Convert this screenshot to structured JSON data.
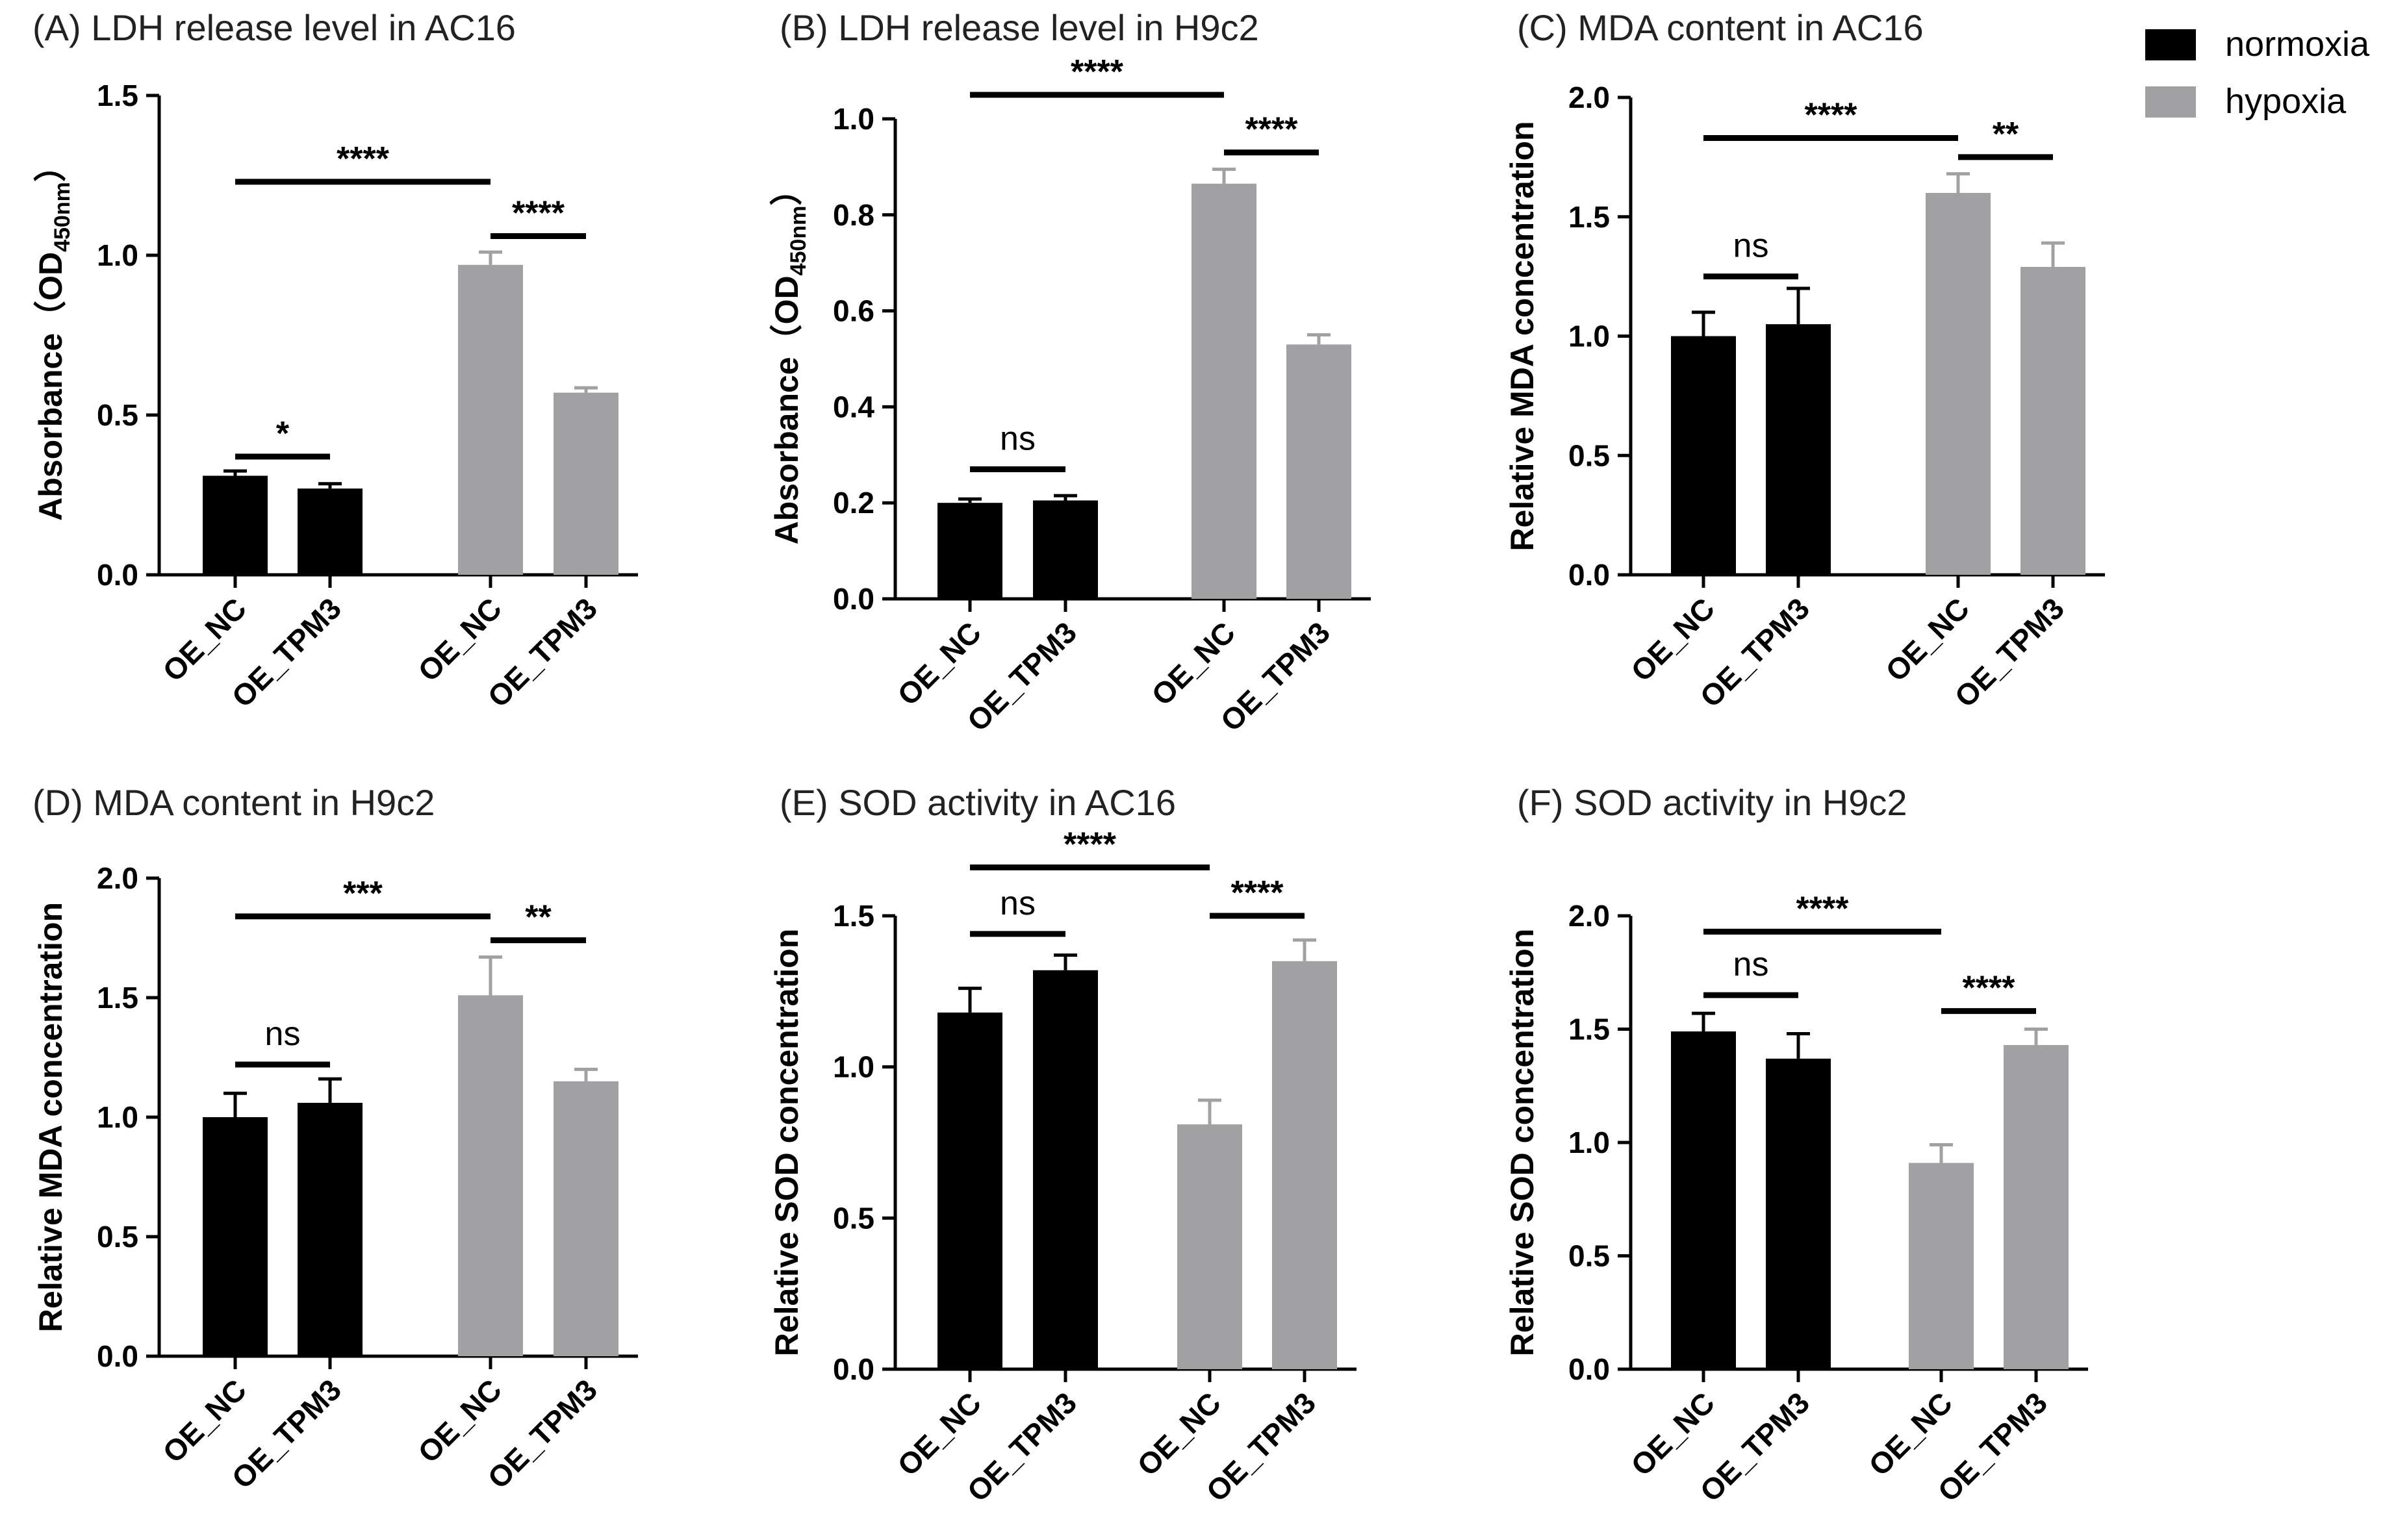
{
  "legend": [
    {
      "name": "normoxia",
      "color": "#000000"
    },
    {
      "name": "hypoxia",
      "color": "#a1a1a4"
    }
  ],
  "chart_data": [
    {
      "type": "bar",
      "title": "(A) LDH release level in AC16",
      "ylabel": "Absorbance（OD",
      "ylabel_sub": "450nm",
      "ylabel_suffix": "）",
      "ylim": [
        0,
        1.5
      ],
      "yticks": [
        "0.0",
        "0.5",
        "1.0",
        "1.5"
      ],
      "yticks_values": [
        0,
        0.5,
        1.0,
        1.5
      ],
      "categories": [
        "OE_NC",
        "OE_TPM3",
        "OE_NC",
        "OE_TPM3"
      ],
      "groups": [
        "normoxia",
        "normoxia",
        "hypoxia",
        "hypoxia"
      ],
      "values": [
        0.31,
        0.27,
        0.97,
        0.57
      ],
      "errors": [
        0.015,
        0.015,
        0.04,
        0.015
      ],
      "significance": [
        {
          "from": 0,
          "to": 1,
          "label": "*",
          "y": 0.37
        },
        {
          "from": 2,
          "to": 3,
          "label": "****",
          "y": 1.06
        },
        {
          "from": 0,
          "to": 2,
          "label": "****",
          "y": 1.23
        }
      ]
    },
    {
      "type": "bar",
      "title": "(B) LDH release level in H9c2",
      "ylabel": "Absorbance（OD",
      "ylabel_sub": "450nm",
      "ylabel_suffix": "）",
      "ylim": [
        0,
        1.0
      ],
      "yticks": [
        "0.0",
        "0.2",
        "0.4",
        "0.6",
        "0.8",
        "1.0"
      ],
      "yticks_values": [
        0,
        0.2,
        0.4,
        0.6,
        0.8,
        1.0
      ],
      "categories": [
        "OE_NC",
        "OE_TPM3",
        "OE_NC",
        "OE_TPM3"
      ],
      "groups": [
        "normoxia",
        "normoxia",
        "hypoxia",
        "hypoxia"
      ],
      "values": [
        0.2,
        0.205,
        0.865,
        0.53
      ],
      "errors": [
        0.008,
        0.01,
        0.03,
        0.02
      ],
      "significance": [
        {
          "from": 0,
          "to": 1,
          "label": "ns",
          "y": 0.27
        },
        {
          "from": 2,
          "to": 3,
          "label": "****",
          "y": 0.93
        },
        {
          "from": 0,
          "to": 2,
          "label": "****",
          "y": 1.05
        }
      ]
    },
    {
      "type": "bar",
      "title": "(C) MDA content in AC16",
      "ylabel": "Relative MDA concentration",
      "ylim": [
        0,
        2.0
      ],
      "yticks": [
        "0.0",
        "0.5",
        "1.0",
        "1.5",
        "2.0"
      ],
      "yticks_values": [
        0,
        0.5,
        1.0,
        1.5,
        2.0
      ],
      "categories": [
        "OE_NC",
        "OE_TPM3",
        "OE_NC",
        "OE_TPM3"
      ],
      "groups": [
        "normoxia",
        "normoxia",
        "hypoxia",
        "hypoxia"
      ],
      "values": [
        1.0,
        1.05,
        1.6,
        1.29
      ],
      "errors": [
        0.1,
        0.15,
        0.08,
        0.1
      ],
      "significance": [
        {
          "from": 0,
          "to": 1,
          "label": "ns",
          "y": 1.25
        },
        {
          "from": 2,
          "to": 3,
          "label": "**",
          "y": 1.75
        },
        {
          "from": 0,
          "to": 2,
          "label": "****",
          "y": 1.83
        }
      ]
    },
    {
      "type": "bar",
      "title": "(D) MDA content in H9c2",
      "ylabel": "Relative MDA concentration",
      "ylim": [
        0,
        2.0
      ],
      "yticks": [
        "0.0",
        "0.5",
        "1.0",
        "1.5",
        "2.0"
      ],
      "yticks_values": [
        0,
        0.5,
        1.0,
        1.5,
        2.0
      ],
      "categories": [
        "OE_NC",
        "OE_TPM3",
        "OE_NC",
        "OE_TPM3"
      ],
      "groups": [
        "normoxia",
        "normoxia",
        "hypoxia",
        "hypoxia"
      ],
      "values": [
        1.0,
        1.06,
        1.51,
        1.15
      ],
      "errors": [
        0.1,
        0.1,
        0.16,
        0.05
      ],
      "significance": [
        {
          "from": 0,
          "to": 1,
          "label": "ns",
          "y": 1.22
        },
        {
          "from": 2,
          "to": 3,
          "label": "**",
          "y": 1.74
        },
        {
          "from": 0,
          "to": 2,
          "label": "***",
          "y": 1.84
        }
      ]
    },
    {
      "type": "bar",
      "title": "(E) SOD activity in AC16",
      "ylabel": "Relative SOD concentration",
      "ylim": [
        0,
        1.5
      ],
      "yticks": [
        "0.0",
        "0.5",
        "1.0",
        "1.5"
      ],
      "yticks_values": [
        0,
        0.5,
        1.0,
        1.5
      ],
      "categories": [
        "OE_NC",
        "OE_TPM3",
        "OE_NC",
        "OE_TPM3"
      ],
      "groups": [
        "normoxia",
        "normoxia",
        "hypoxia",
        "hypoxia"
      ],
      "values": [
        1.18,
        1.32,
        0.81,
        1.35
      ],
      "errors": [
        0.08,
        0.05,
        0.08,
        0.07
      ],
      "significance": [
        {
          "from": 0,
          "to": 1,
          "label": "ns",
          "y": 1.44
        },
        {
          "from": 2,
          "to": 3,
          "label": "****",
          "y": 1.5
        },
        {
          "from": 0,
          "to": 2,
          "label": "****",
          "y": 1.66
        }
      ]
    },
    {
      "type": "bar",
      "title": "(F) SOD activity in H9c2",
      "ylabel": "Relative SOD concentration",
      "ylim": [
        0,
        2.0
      ],
      "yticks": [
        "0.0",
        "0.5",
        "1.0",
        "1.5",
        "2.0"
      ],
      "yticks_values": [
        0,
        0.5,
        1.0,
        1.5,
        2.0
      ],
      "categories": [
        "OE_NC",
        "OE_TPM3",
        "OE_NC",
        "OE_TPM3"
      ],
      "groups": [
        "normoxia",
        "normoxia",
        "hypoxia",
        "hypoxia"
      ],
      "values": [
        1.49,
        1.37,
        0.91,
        1.43
      ],
      "errors": [
        0.08,
        0.11,
        0.08,
        0.07
      ],
      "significance": [
        {
          "from": 0,
          "to": 1,
          "label": "ns",
          "y": 1.65
        },
        {
          "from": 2,
          "to": 3,
          "label": "****",
          "y": 1.58
        },
        {
          "from": 0,
          "to": 2,
          "label": "****",
          "y": 1.93
        }
      ]
    }
  ]
}
